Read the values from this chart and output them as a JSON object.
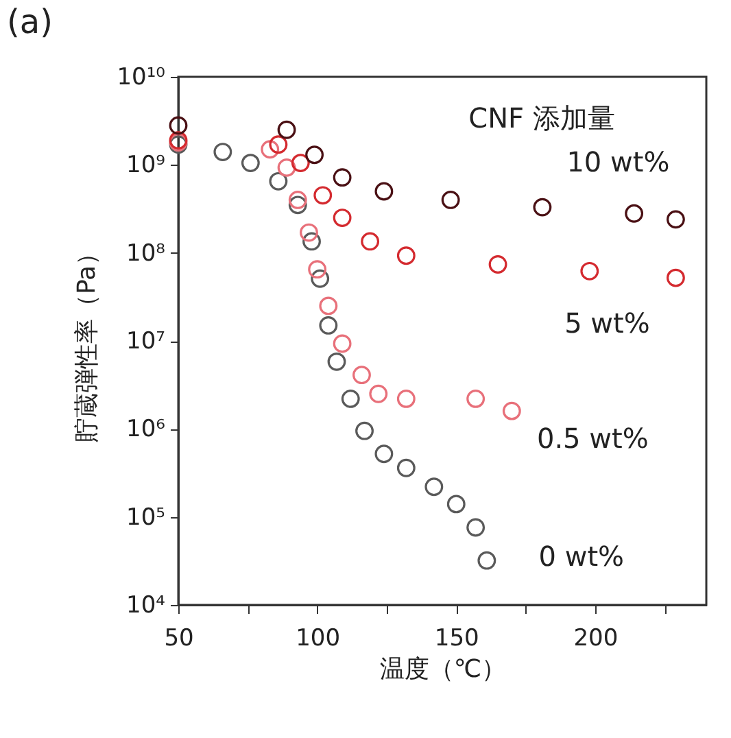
{
  "chart_data": {
    "type": "scatter",
    "title": "(a)",
    "xlabel": "温度（℃）",
    "ylabel": "貯蔵弾性率（Pa）",
    "legend_title": "CNF 添加量",
    "legend": false,
    "grid": false,
    "marker": "circle",
    "log": "y",
    "xlim": [
      50,
      240
    ],
    "xticks": [
      50,
      {
        "value": 75,
        "label": null
      },
      100,
      {
        "value": 125,
        "label": null
      },
      150,
      {
        "value": 175,
        "label": null
      },
      200,
      {
        "value": 225,
        "label": null
      }
    ],
    "ylim": [
      10000,
      10000000000
    ],
    "yticks": [
      {
        "value": 10000,
        "label": "10⁴"
      },
      {
        "value": 100000,
        "label": "10⁵"
      },
      {
        "value": 1000000,
        "label": "10⁶"
      },
      {
        "value": 10000000,
        "label": "10⁷"
      },
      {
        "value": 100000000,
        "label": "10⁸"
      },
      {
        "value": 1000000000,
        "label": "10⁹"
      },
      {
        "value": 10000000000,
        "label": "10¹⁰"
      }
    ],
    "series": [
      {
        "name": "10 wt%",
        "color": "#4a1014",
        "x": [
          50,
          89,
          99,
          109,
          124,
          148,
          181,
          214,
          229
        ],
        "values": [
          2800000000,
          2500000000,
          1300000000,
          720000000,
          500000000,
          400000000,
          330000000,
          280000000,
          240000000
        ]
      },
      {
        "name": "5 wt%",
        "color": "#d42a2f",
        "x": [
          50,
          86,
          94,
          102,
          109,
          119,
          132,
          165,
          198,
          229
        ],
        "values": [
          1900000000,
          1700000000,
          1050000000,
          450000000,
          250000000,
          135000000,
          93000000,
          74000000,
          62000000,
          52000000
        ]
      },
      {
        "name": "0.5 wt%",
        "color": "#e8707a",
        "x": [
          50,
          83,
          89,
          93,
          97,
          100,
          104,
          109,
          116,
          122,
          132,
          157,
          170
        ],
        "values": [
          1800000000,
          1500000000,
          930000000,
          400000000,
          170000000,
          65000000,
          25000000,
          9300000,
          4100000,
          2500000,
          2200000,
          2200000,
          1600000
        ]
      },
      {
        "name": "0 wt%",
        "color": "#5a5a5a",
        "x": [
          50,
          66,
          76,
          86,
          93,
          98,
          101,
          104,
          107,
          112,
          117,
          124,
          132,
          142,
          150,
          157,
          161
        ],
        "values": [
          1700000000,
          1400000000,
          1050000000,
          650000000,
          350000000,
          135000000,
          51000000,
          15000000,
          5800000,
          2200000,
          950000,
          520000,
          360000,
          220000,
          140000,
          76000,
          32000
        ]
      }
    ]
  }
}
